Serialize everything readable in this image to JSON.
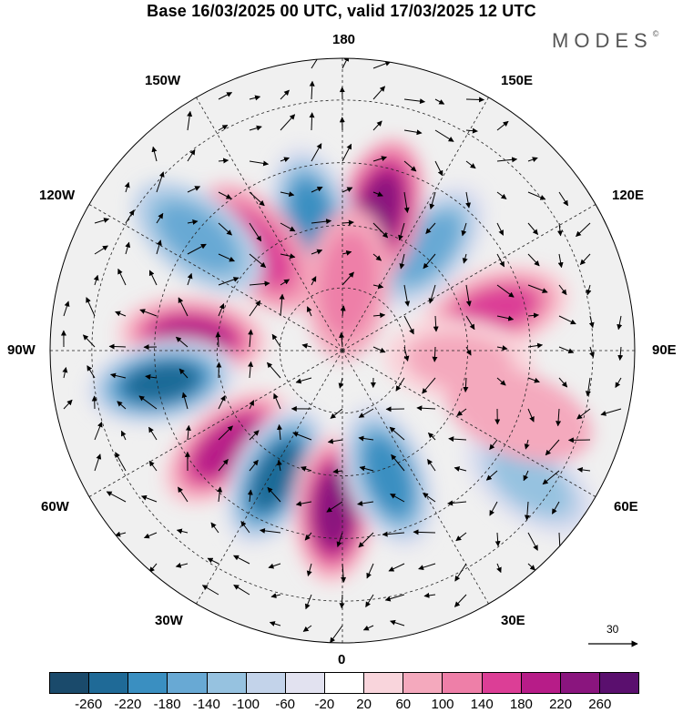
{
  "title": "Base 16/03/2025 00 UTC, valid 17/03/2025 12 UTC",
  "logo": "MODES",
  "logo_mark": "©",
  "longitude_labels": {
    "top": "180",
    "bottom": "0",
    "left": "90W",
    "right": "90E",
    "upper_left_1": "150W",
    "upper_left_2": "120W",
    "lower_left_1": "60W",
    "lower_left_2": "30W",
    "upper_right_1": "150E",
    "upper_right_2": "120E",
    "lower_right_1": "60E",
    "lower_right_2": "30E"
  },
  "vector_scale": {
    "label": "30",
    "icon": "arrow-right-icon"
  },
  "colorbar": {
    "ticks": [
      "-260",
      "-220",
      "-180",
      "-140",
      "-100",
      "-60",
      "-20",
      "20",
      "60",
      "100",
      "140",
      "180",
      "220",
      "260"
    ],
    "colors": [
      "#1a4a6b",
      "#1f6a97",
      "#3a8fc1",
      "#68a9d4",
      "#96c2e0",
      "#c3d3ea",
      "#e2e2f0",
      "#ffffff",
      "#f9d5dc",
      "#f4a9bd",
      "#ee7fa8",
      "#dc3e96",
      "#b71c88",
      "#8a157e",
      "#5a0f6e"
    ]
  },
  "anomalies": [
    {
      "lon": -95,
      "lat": 54,
      "value": 210
    },
    {
      "lon": -80,
      "lat": 46,
      "value": -250
    },
    {
      "lon": -50,
      "lat": 54,
      "value": 210
    },
    {
      "lon": -28,
      "lat": 56,
      "value": -250
    },
    {
      "lon": -3,
      "lat": 52,
      "value": 240
    },
    {
      "lon": 20,
      "lat": 58,
      "value": -200
    },
    {
      "lon": 105,
      "lat": 52,
      "value": 170
    },
    {
      "lon": 140,
      "lat": 58,
      "value": -170
    },
    {
      "lon": 165,
      "lat": 56,
      "value": 230
    },
    {
      "lon": -167,
      "lat": 58,
      "value": -200
    },
    {
      "lon": -140,
      "lat": 58,
      "value": 140
    },
    {
      "lon": -128,
      "lat": 46,
      "value": -150
    },
    {
      "lon": 85,
      "lat": 62,
      "value": 80
    },
    {
      "lon": 55,
      "lat": 35,
      "value": -120
    },
    {
      "lon": 175,
      "lat": 74,
      "value": 100
    },
    {
      "lon": 70,
      "lat": 45,
      "value": 60
    }
  ]
}
